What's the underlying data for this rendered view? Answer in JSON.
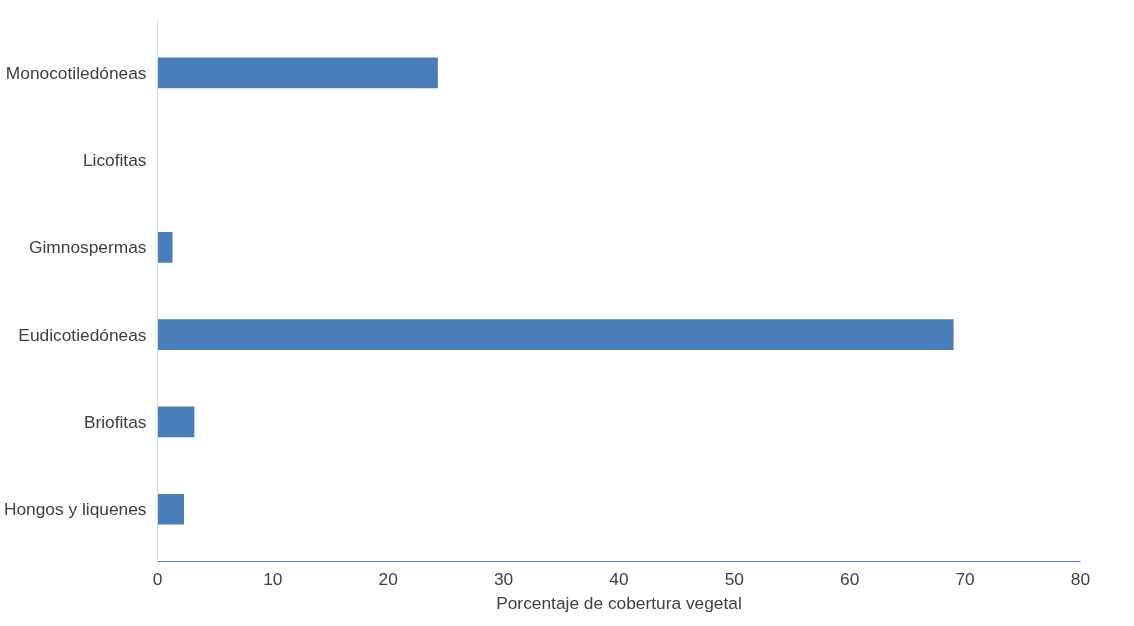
{
  "chart_data": {
    "type": "bar",
    "orientation": "horizontal",
    "xlabel": "Porcentaje de cobertura vegetal",
    "categories": [
      "Monocotiledóneas",
      "Licofitas",
      "Gimnospermas",
      "Eudicotiedóneas",
      "Briofitas",
      "Hongos y liquenes"
    ],
    "values": [
      24.3,
      0,
      1.3,
      69.0,
      3.2,
      2.3
    ],
    "color": "#4a7ebb",
    "xlim": [
      0,
      80
    ],
    "xticks": [
      0,
      10,
      20,
      30,
      40,
      50,
      60,
      70,
      80
    ],
    "grid": false
  }
}
